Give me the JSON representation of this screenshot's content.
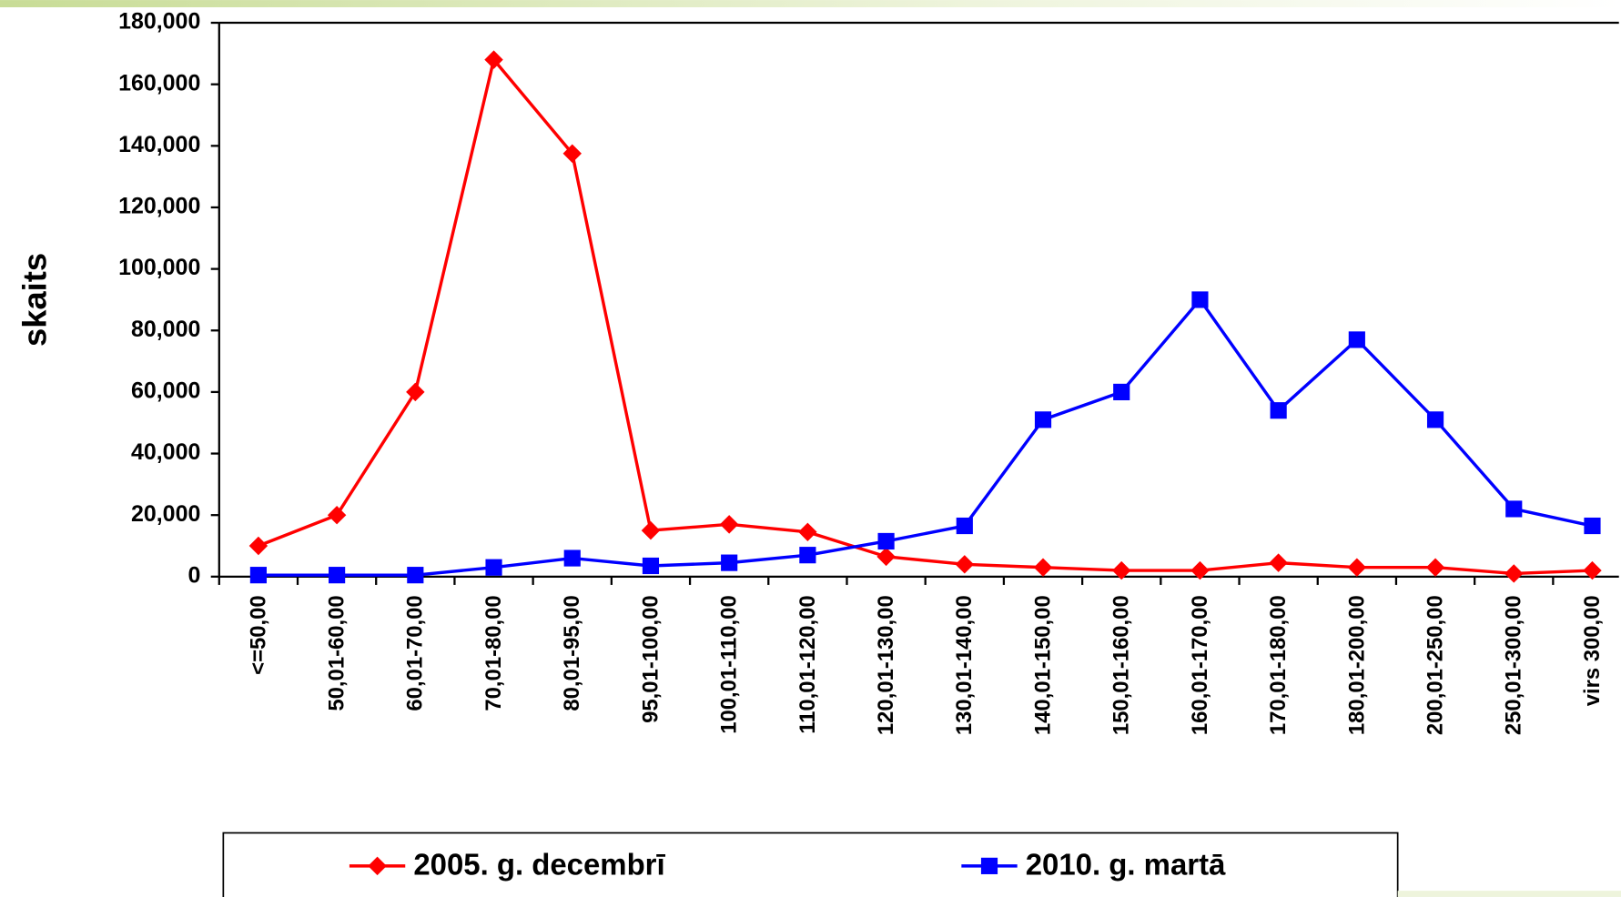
{
  "chart_data": {
    "type": "line",
    "y_label": "skaits",
    "categories": [
      "<=50,00",
      "50,01-60,00",
      "60,01-70,00",
      "70,01-80,00",
      "80,01-95,00",
      "95,01-100,00",
      "100,01-110,00",
      "110,01-120,00",
      "120,01-130,00",
      "130,01-140,00",
      "140,01-150,00",
      "150,01-160,00",
      "160,01-170,00",
      "170,01-180,00",
      "180,01-200,00",
      "200,01-250,00",
      "250,01-300,00",
      "virs 300,00"
    ],
    "series": [
      {
        "name": "2005. g. decembrī",
        "color": "#ff0000",
        "marker": "diamond",
        "values": [
          10000,
          20000,
          60000,
          168000,
          137500,
          15000,
          17000,
          14500,
          6500,
          4000,
          3000,
          2000,
          2000,
          4500,
          3000,
          3000,
          1000,
          2000
        ]
      },
      {
        "name": "2010. g. martā",
        "color": "#0000ff",
        "marker": "square",
        "values": [
          500,
          500,
          500,
          3000,
          6000,
          3500,
          4500,
          7000,
          11500,
          16500,
          51000,
          60000,
          90000,
          54000,
          77000,
          51000,
          22000,
          16500
        ]
      }
    ],
    "ylim": [
      0,
      180000
    ],
    "yticks": [
      0,
      {
        "value": 20000,
        "label": "20,000"
      },
      {
        "value": 40000,
        "label": "40,000"
      },
      {
        "value": 60000,
        "label": "60,000"
      },
      {
        "value": 80000,
        "label": "80,000"
      },
      {
        "value": 100000,
        "label": "100,000"
      },
      {
        "value": 120000,
        "label": "120,000"
      },
      {
        "value": 140000,
        "label": "140,000"
      },
      {
        "value": 160000,
        "label": "160,000"
      },
      {
        "value": 180000,
        "label": "180,000"
      }
    ],
    "legend": "bottom"
  }
}
